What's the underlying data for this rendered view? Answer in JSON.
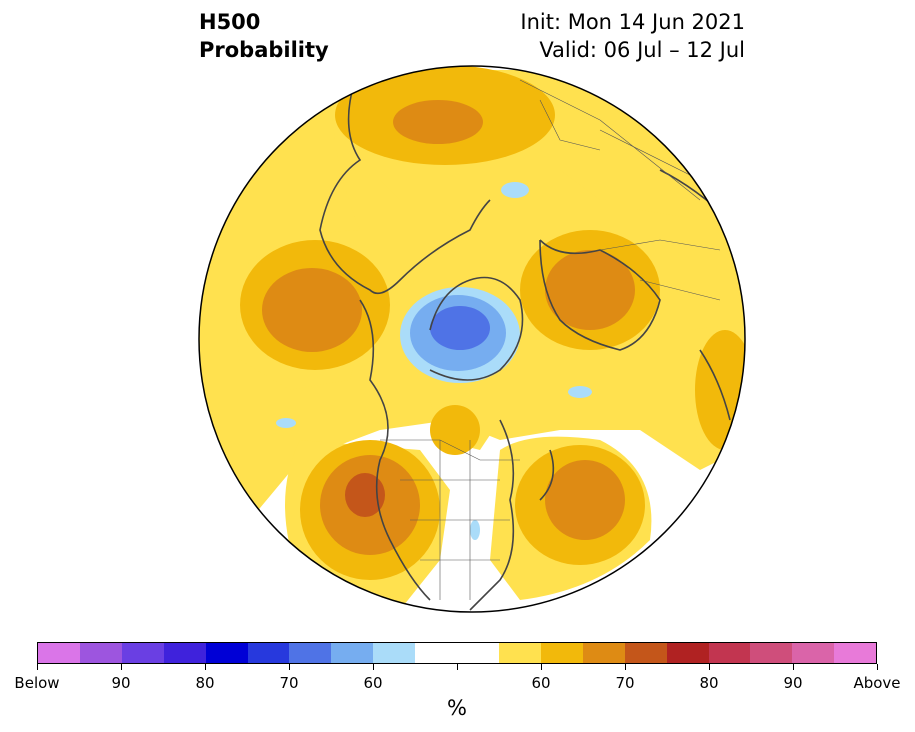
{
  "title": {
    "variable": "H500",
    "product": "Probability",
    "init": "Init: Mon 14 Jun 2021",
    "valid": "Valid: 06 Jul – 12 Jul"
  },
  "map": {
    "projection": "north-polar-stereographic",
    "features": [
      {
        "label": "Positive anomaly",
        "center": "North Atlantic / Western Europe",
        "peak_category": "Above 70",
        "color": "#de8b14"
      },
      {
        "label": "Positive anomaly",
        "center": "Eastern Siberia / Kamchatka",
        "peak_category": "Above 70",
        "color": "#de8b14"
      },
      {
        "label": "Positive anomaly",
        "center": "Western Russia / Scandinavia",
        "peak_category": "Above 70",
        "color": "#de8b14"
      },
      {
        "label": "Positive anomaly",
        "center": "Pacific Northwest North America",
        "peak_category": "Above 70",
        "color": "#c4561a"
      },
      {
        "label": "Negative anomaly",
        "center": "Arctic Ocean (Siberian side)",
        "peak_category": "Below 70",
        "color": "#4f73e6"
      }
    ]
  },
  "colorbar": {
    "colors": [
      "#da75e8",
      "#9d55df",
      "#6a3fe3",
      "#3f22dc",
      "#0000d6",
      "#2739dd",
      "#4f73e6",
      "#76adf0",
      "#aadcf9",
      "#ffffff",
      "#ffffff",
      "#ffe14f",
      "#f2b90b",
      "#de8b14",
      "#c4561a",
      "#b02222",
      "#c23550",
      "#cf4e7b",
      "#da64a9",
      "#e87ad9"
    ],
    "tick_labels": [
      "Below",
      "90",
      "80",
      "70",
      "60",
      "",
      "60",
      "70",
      "80",
      "90",
      "Above"
    ],
    "unit": "%"
  }
}
